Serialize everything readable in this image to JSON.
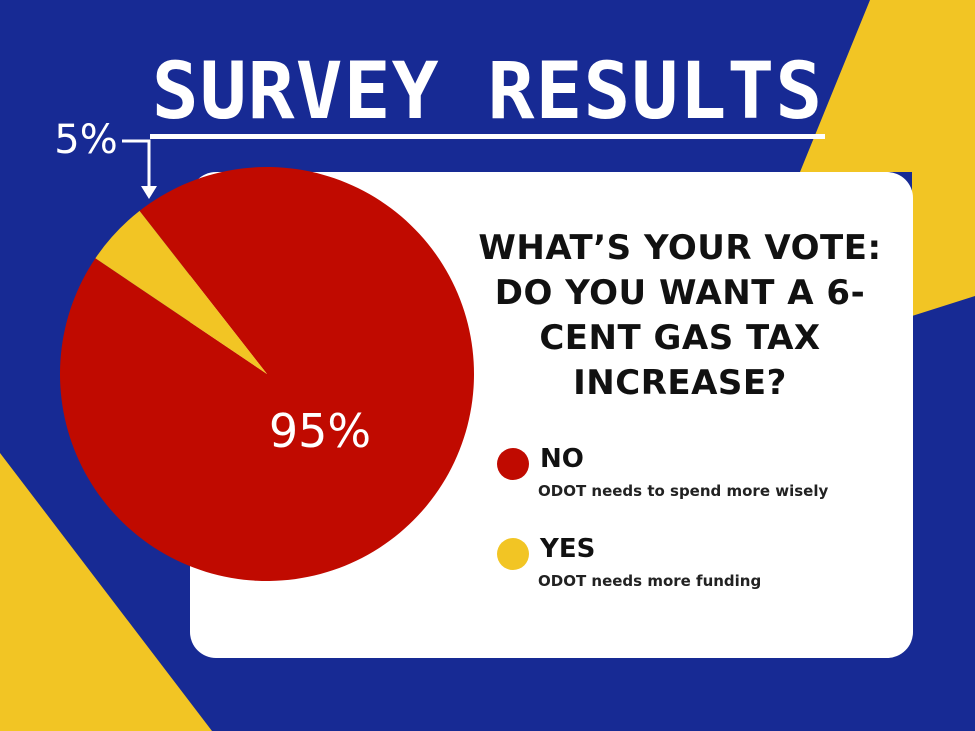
{
  "colors": {
    "background_blue": "#172a94",
    "accent_yellow": "#f2c524",
    "no_red": "#c00a00",
    "yes_yellow": "#f2c524",
    "card": "#ffffff"
  },
  "title": "SURVEY RESULTS",
  "question": "WHAT’S YOUR VOTE: DO YOU WANT A 6-CENT GAS TAX INCREASE?",
  "legend": [
    {
      "label": "NO",
      "description": "ODOT needs to spend more wisely",
      "color": "#c00a00"
    },
    {
      "label": "YES",
      "description": "ODOT needs more funding",
      "color": "#f2c524"
    }
  ],
  "chart_data": {
    "type": "pie",
    "title": "",
    "slices": [
      {
        "label": "NO",
        "value": 95,
        "display": "95%",
        "color": "#c00a00"
      },
      {
        "label": "YES",
        "value": 5,
        "display": "5%",
        "color": "#f2c524"
      }
    ],
    "legend_position": "right"
  }
}
